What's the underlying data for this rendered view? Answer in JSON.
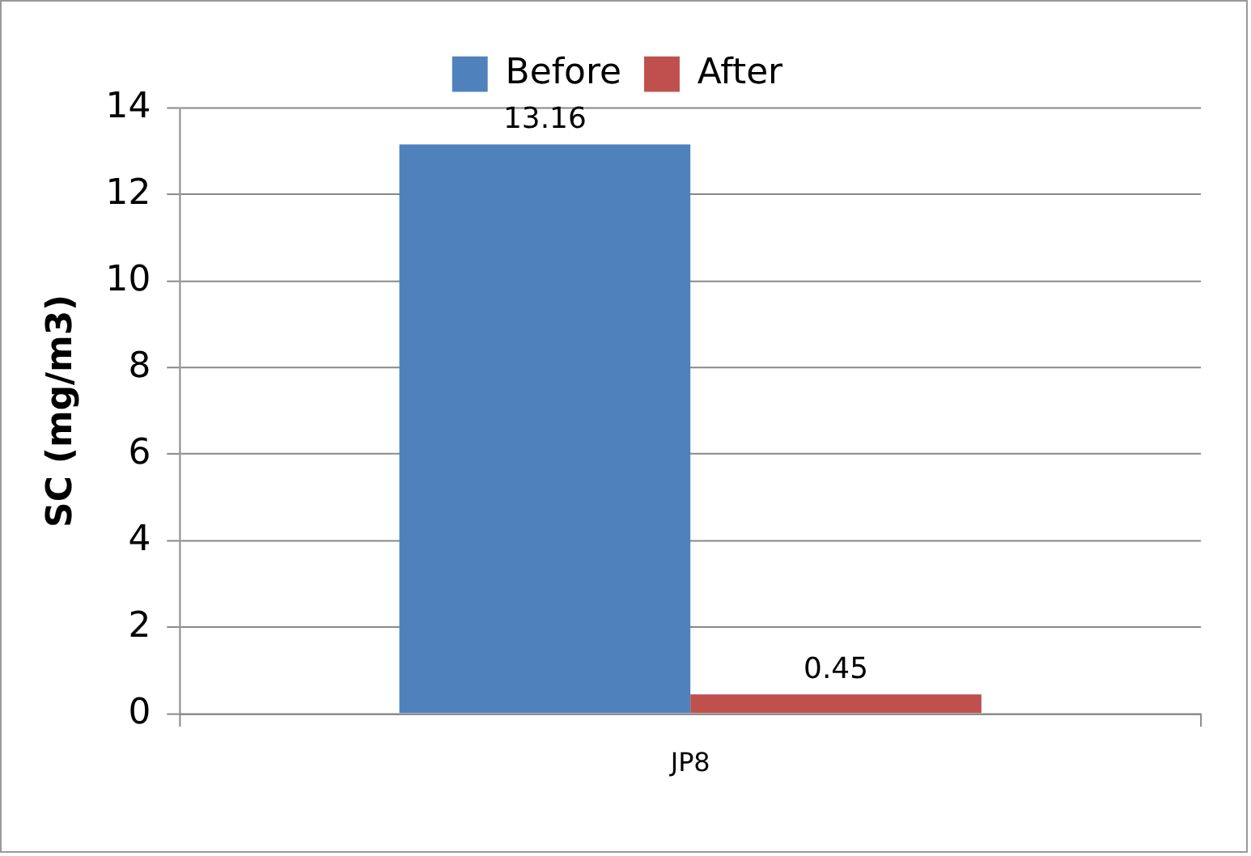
{
  "chart_data": {
    "type": "bar",
    "ylabel": "SC (mg/m3)",
    "categories": [
      "JP8"
    ],
    "series": [
      {
        "name": "Before",
        "color": "#4f81bd",
        "values": [
          13.16
        ]
      },
      {
        "name": "After",
        "color": "#c0504d",
        "values": [
          0.45
        ]
      }
    ],
    "ylim": [
      0,
      14
    ],
    "yticks": [
      0,
      2,
      4,
      6,
      8,
      10,
      12,
      14
    ],
    "grid": "y",
    "legend": "top",
    "data_labels": true
  }
}
